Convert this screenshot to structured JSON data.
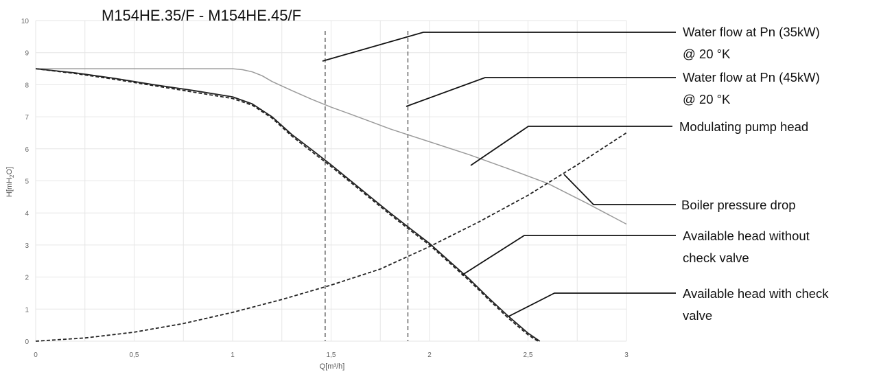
{
  "chart_data": {
    "type": "line",
    "title": "M154HE.35/F - M154HE.45/F",
    "xlabel": "Q[m³/h]",
    "ylabel_parts": [
      "H[mH",
      "2",
      "O]"
    ],
    "xlim": [
      0,
      3
    ],
    "ylim": [
      0,
      10
    ],
    "x_ticks": [
      {
        "value": 0,
        "label": "0"
      },
      {
        "value": 0.5,
        "label": "0,5"
      },
      {
        "value": 1,
        "label": "1"
      },
      {
        "value": 1.5,
        "label": "1,5"
      },
      {
        "value": 2,
        "label": "2"
      },
      {
        "value": 2.5,
        "label": "2,5"
      },
      {
        "value": 3,
        "label": "3"
      }
    ],
    "y_ticks": [
      {
        "value": 0,
        "label": "0"
      },
      {
        "value": 1,
        "label": "1"
      },
      {
        "value": 2,
        "label": "2"
      },
      {
        "value": 3,
        "label": "3"
      },
      {
        "value": 4,
        "label": "4"
      },
      {
        "value": 5,
        "label": "5"
      },
      {
        "value": 6,
        "label": "6"
      },
      {
        "value": 7,
        "label": "7"
      },
      {
        "value": 8,
        "label": "8"
      },
      {
        "value": 9,
        "label": "9"
      },
      {
        "value": 10,
        "label": "10"
      }
    ],
    "grid": true,
    "series": [
      {
        "key": "modulating",
        "name": "Modulating pump head",
        "color": "#9a9a9a",
        "style": "solid",
        "x": [
          0,
          0.25,
          0.5,
          0.75,
          0.95,
          1.0,
          1.05,
          1.1,
          1.15,
          1.2,
          1.3,
          1.4,
          1.5,
          1.6,
          1.7,
          1.8,
          1.9,
          2.0,
          2.2,
          2.4,
          2.6,
          2.8,
          3.0
        ],
        "y": [
          8.5,
          8.5,
          8.5,
          8.5,
          8.5,
          8.5,
          8.47,
          8.4,
          8.28,
          8.1,
          7.82,
          7.55,
          7.3,
          7.08,
          6.85,
          6.62,
          6.42,
          6.22,
          5.82,
          5.38,
          4.92,
          4.3,
          3.65
        ]
      },
      {
        "key": "without_valve",
        "name": "Available head without check valve",
        "color": "#222222",
        "style": "solid",
        "x": [
          0,
          0.2,
          0.4,
          0.6,
          0.8,
          1.0,
          1.1,
          1.2,
          1.3,
          1.4,
          1.5,
          1.6,
          1.7,
          1.8,
          1.9,
          2.0,
          2.1,
          2.2,
          2.3,
          2.4,
          2.5,
          2.56
        ],
        "y": [
          8.5,
          8.37,
          8.2,
          8.0,
          7.82,
          7.62,
          7.4,
          7.0,
          6.45,
          5.98,
          5.5,
          5.0,
          4.5,
          4.0,
          3.52,
          3.05,
          2.5,
          1.95,
          1.35,
          0.78,
          0.25,
          0.0
        ]
      },
      {
        "key": "with_valve",
        "name": "Available head with check valve",
        "color": "#222222",
        "style": "dashed",
        "x": [
          0,
          0.2,
          0.4,
          0.6,
          0.8,
          1.0,
          1.1,
          1.2,
          1.3,
          1.4,
          1.5,
          1.6,
          1.7,
          1.8,
          1.9,
          2.0,
          2.1,
          2.2,
          2.3,
          2.4,
          2.5,
          2.55
        ],
        "y": [
          8.5,
          8.35,
          8.17,
          7.97,
          7.77,
          7.57,
          7.36,
          6.96,
          6.4,
          5.92,
          5.45,
          4.95,
          4.45,
          3.95,
          3.47,
          3.0,
          2.45,
          1.9,
          1.3,
          0.72,
          0.2,
          0.0
        ]
      },
      {
        "key": "pressure_drop",
        "name": "Boiler pressure drop",
        "color": "#222222",
        "style": "dashed",
        "x": [
          0,
          0.25,
          0.5,
          0.75,
          1.0,
          1.25,
          1.5,
          1.75,
          2.0,
          2.25,
          2.5,
          2.75,
          3.0
        ],
        "y": [
          0,
          0.1,
          0.28,
          0.55,
          0.9,
          1.3,
          1.75,
          2.25,
          2.95,
          3.72,
          4.55,
          5.5,
          6.5
        ]
      }
    ],
    "vertical_lines": [
      {
        "key": "pn35",
        "x": 1.47,
        "label_lines": [
          "Water flow at Pn (35kW)",
          "@ 20 °K"
        ]
      },
      {
        "key": "pn45",
        "x": 1.89,
        "label_lines": [
          "Water flow at Pn (45kW)",
          "@ 20 °K"
        ]
      }
    ],
    "annotations": [
      {
        "key": "pn35",
        "lines": [
          "Water flow at Pn (35kW)",
          "@ 20 °K"
        ]
      },
      {
        "key": "pn45",
        "lines": [
          "Water flow at Pn (45kW)",
          "@ 20 °K"
        ]
      },
      {
        "key": "modulating",
        "lines": [
          "Modulating pump head"
        ]
      },
      {
        "key": "pressure_drop",
        "lines": [
          "Boiler pressure drop"
        ]
      },
      {
        "key": "without_valve",
        "lines": [
          "Available head without",
          "check valve"
        ]
      },
      {
        "key": "with_valve",
        "lines": [
          "Available head with check",
          "valve"
        ]
      }
    ]
  }
}
